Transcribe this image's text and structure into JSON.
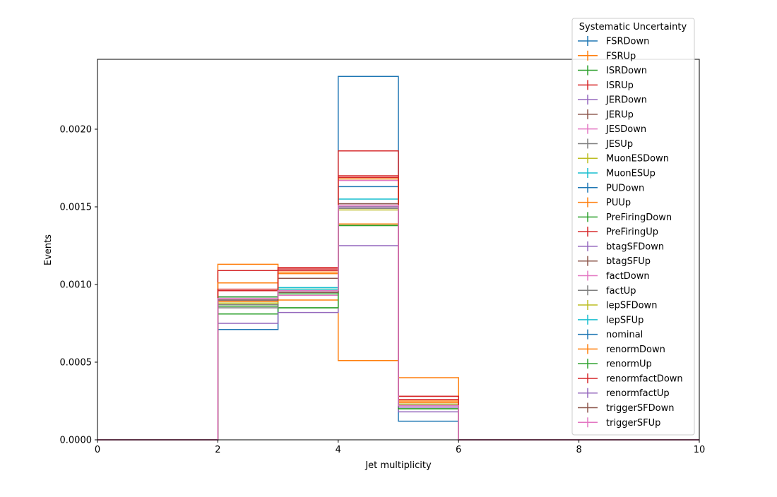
{
  "chart_data": {
    "type": "step-histogram",
    "title": "",
    "xlabel": "Jet multiplicity",
    "ylabel": "Events",
    "xlim": [
      0,
      10
    ],
    "ylim": [
      0,
      0.00245
    ],
    "x_ticks": [
      0,
      2,
      4,
      6,
      8,
      10
    ],
    "x_tick_labels": [
      "0",
      "2",
      "4",
      "6",
      "8",
      "10"
    ],
    "y_ticks": [
      0,
      0.0005,
      0.001,
      0.0015,
      0.002
    ],
    "y_tick_labels": [
      "0.0000",
      "0.0005",
      "0.0010",
      "0.0015",
      "0.0020"
    ],
    "bin_edges": [
      0,
      1,
      2,
      3,
      4,
      5,
      6,
      7,
      8,
      9,
      10
    ],
    "legend": {
      "title": "Systematic Uncertainty",
      "placement": "top-right"
    },
    "series": [
      {
        "name": "FSRDown",
        "color": "#1f77b4",
        "values": [
          0,
          0,
          0.00071,
          0.00095,
          0.00234,
          0.00012,
          0,
          0,
          0,
          0
        ]
      },
      {
        "name": "FSRUp",
        "color": "#ff7f0e",
        "values": [
          0,
          0,
          0.00113,
          0.0009,
          0.00051,
          0.0004,
          0,
          0,
          0,
          0
        ]
      },
      {
        "name": "ISRDown",
        "color": "#2ca02c",
        "values": [
          0,
          0,
          0.00081,
          0.00085,
          0.00138,
          0.00021,
          0,
          0,
          0,
          0
        ]
      },
      {
        "name": "ISRUp",
        "color": "#d62728",
        "values": [
          0,
          0,
          0.00109,
          0.00111,
          0.00186,
          0.00028,
          0,
          0,
          0,
          0
        ]
      },
      {
        "name": "JERDown",
        "color": "#9467bd",
        "values": [
          0,
          0,
          0.00075,
          0.00082,
          0.00125,
          0.00018,
          0,
          0,
          0,
          0
        ]
      },
      {
        "name": "JERUp",
        "color": "#8c564b",
        "values": [
          0,
          0,
          0.00086,
          0.00104,
          0.00168,
          0.00024,
          0,
          0,
          0,
          0
        ]
      },
      {
        "name": "JESDown",
        "color": "#e377c2",
        "values": [
          0,
          0,
          0.00089,
          0.00093,
          0.00167,
          0.00024,
          0,
          0,
          0,
          0
        ]
      },
      {
        "name": "JESUp",
        "color": "#7f7f7f",
        "values": [
          0,
          0,
          0.00087,
          0.00096,
          0.00152,
          0.00021,
          0,
          0,
          0,
          0
        ]
      },
      {
        "name": "MuonESDown",
        "color": "#bcbd22",
        "values": [
          0,
          0,
          0.00088,
          0.00097,
          0.00148,
          0.00022,
          0,
          0,
          0,
          0
        ]
      },
      {
        "name": "MuonESUp",
        "color": "#17becf",
        "values": [
          0,
          0,
          0.00092,
          0.00098,
          0.00155,
          0.00022,
          0,
          0,
          0,
          0
        ]
      },
      {
        "name": "PUDown",
        "color": "#1f77b4",
        "values": [
          0,
          0,
          0.00092,
          0.00095,
          0.00163,
          0.00021,
          0,
          0,
          0,
          0
        ]
      },
      {
        "name": "PUUp",
        "color": "#ff7f0e",
        "values": [
          0,
          0,
          0.00101,
          0.00107,
          0.00139,
          0.00024,
          0,
          0,
          0,
          0
        ]
      },
      {
        "name": "PreFiringDown",
        "color": "#2ca02c",
        "values": [
          0,
          0,
          0.00086,
          0.00085,
          0.00138,
          0.0002,
          0,
          0,
          0,
          0
        ]
      },
      {
        "name": "PreFiringUp",
        "color": "#d62728",
        "values": [
          0,
          0,
          0.00096,
          0.0011,
          0.00169,
          0.00028,
          0,
          0,
          0,
          0
        ]
      },
      {
        "name": "btagSFDown",
        "color": "#9467bd",
        "values": [
          0,
          0,
          0.00091,
          0.00094,
          0.00151,
          0.00022,
          0,
          0,
          0,
          0
        ]
      },
      {
        "name": "btagSFUp",
        "color": "#8c564b",
        "values": [
          0,
          0,
          0.00092,
          0.00095,
          0.00152,
          0.00022,
          0,
          0,
          0,
          0
        ]
      },
      {
        "name": "factDown",
        "color": "#e377c2",
        "values": [
          0,
          0,
          0.0009,
          0.00096,
          0.0015,
          0.00023,
          0,
          0,
          0,
          0
        ]
      },
      {
        "name": "factUp",
        "color": "#7f7f7f",
        "values": [
          0,
          0,
          0.00085,
          0.00094,
          0.00149,
          0.00022,
          0,
          0,
          0,
          0
        ]
      },
      {
        "name": "lepSFDown",
        "color": "#bcbd22",
        "values": [
          0,
          0,
          0.00088,
          0.00095,
          0.0015,
          0.00023,
          0,
          0,
          0,
          0
        ]
      },
      {
        "name": "lepSFUp",
        "color": "#17becf",
        "values": [
          0,
          0,
          0.00091,
          0.00097,
          0.00151,
          0.00022,
          0,
          0,
          0,
          0
        ]
      },
      {
        "name": "nominal",
        "color": "#1f77b4",
        "values": [
          0,
          0,
          0.0009,
          0.00096,
          0.00151,
          0.00022,
          0,
          0,
          0,
          0
        ]
      },
      {
        "name": "renormDown",
        "color": "#ff7f0e",
        "values": [
          0,
          0,
          0.00089,
          0.00108,
          0.00168,
          0.00025,
          0,
          0,
          0,
          0
        ]
      },
      {
        "name": "renormUp",
        "color": "#2ca02c",
        "values": [
          0,
          0,
          0.00092,
          0.00094,
          0.00138,
          0.0002,
          0,
          0,
          0,
          0
        ]
      },
      {
        "name": "renormfactDown",
        "color": "#d62728",
        "values": [
          0,
          0,
          0.00097,
          0.00109,
          0.0017,
          0.00026,
          0,
          0,
          0,
          0
        ]
      },
      {
        "name": "renormfactUp",
        "color": "#9467bd",
        "values": [
          0,
          0,
          0.00091,
          0.00095,
          0.0015,
          0.00021,
          0,
          0,
          0,
          0
        ]
      },
      {
        "name": "triggerSFDown",
        "color": "#8c564b",
        "values": [
          0,
          0,
          0.0009,
          0.00095,
          0.00151,
          0.00022,
          0,
          0,
          0,
          0
        ]
      },
      {
        "name": "triggerSFUp",
        "color": "#e377c2",
        "values": [
          0,
          0,
          0.00091,
          0.00096,
          0.00151,
          0.00022,
          0,
          0,
          0,
          0
        ]
      }
    ]
  }
}
